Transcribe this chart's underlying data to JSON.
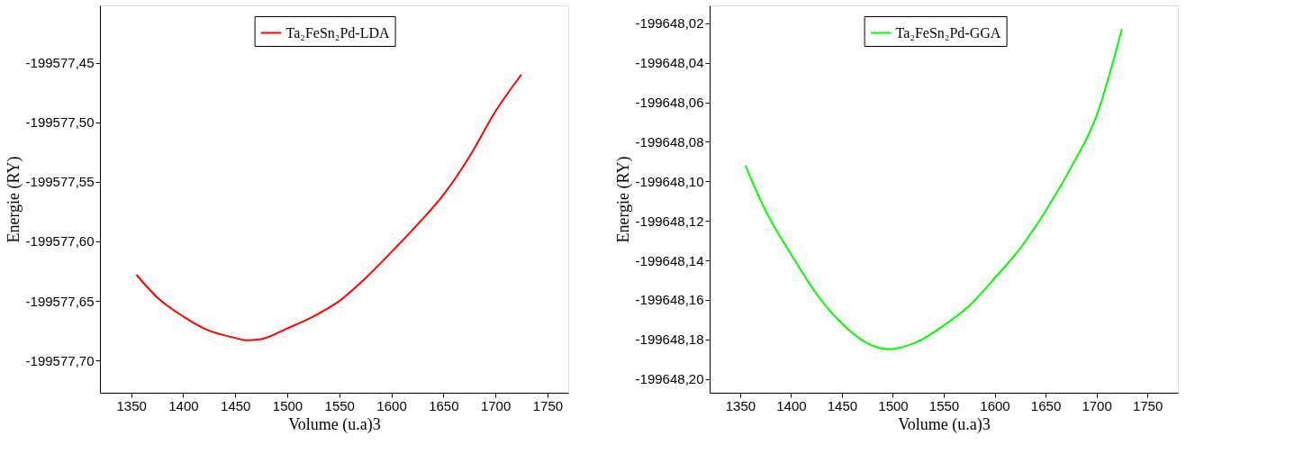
{
  "chart_data": [
    {
      "type": "line",
      "xlabel": "Volume (u.a)3",
      "ylabel": "Energie (RY)",
      "legend": "top",
      "grid": false,
      "marker": "none",
      "line_style": "solid",
      "x": [
        1355,
        1375,
        1400,
        1425,
        1450,
        1460,
        1475,
        1500,
        1525,
        1550,
        1575,
        1600,
        1625,
        1650,
        1675,
        1700,
        1725
      ],
      "series": [
        {
          "name": "Ta₂FeSn₂Pd-LDA",
          "color": "#ff0000",
          "values": [
            -199577.628,
            -199577.647,
            -199577.663,
            -199577.675,
            -199577.681,
            -199577.683,
            -199577.682,
            -199577.673,
            -199577.663,
            -199577.65,
            -199577.631,
            -199577.609,
            -199577.586,
            -199577.561,
            -199577.529,
            -199577.491,
            -199577.46
          ]
        }
      ],
      "xlim": [
        1320,
        1770
      ],
      "xticks": [
        1350,
        1400,
        1450,
        1500,
        1550,
        1600,
        1650,
        1700,
        1750
      ],
      "ylim": [
        -199577.727,
        -199577.402
      ],
      "yticks": [
        {
          "value": -199577.7,
          "label": "-199577,70"
        },
        {
          "value": -199577.65,
          "label": "-199577,65"
        },
        {
          "value": -199577.6,
          "label": "-199577,60"
        },
        {
          "value": -199577.55,
          "label": "-199577,55"
        },
        {
          "value": -199577.5,
          "label": "-199577,50"
        },
        {
          "value": -199577.45,
          "label": "-199577,45"
        }
      ]
    },
    {
      "type": "line",
      "xlabel": "Volume (u.a)3",
      "ylabel": "Energie (RY)",
      "legend": "top",
      "grid": false,
      "marker": "none",
      "line_style": "solid",
      "x": [
        1355,
        1375,
        1400,
        1425,
        1450,
        1475,
        1495,
        1525,
        1550,
        1575,
        1600,
        1625,
        1650,
        1675,
        1700,
        1725
      ],
      "series": [
        {
          "name": "Ta₂FeSn₂Pd-GGA",
          "color": "#00ff00",
          "values": [
            -199648.092,
            -199648.115,
            -199648.137,
            -199648.157,
            -199648.172,
            -199648.182,
            -199648.185,
            -199648.181,
            -199648.173,
            -199648.163,
            -199648.149,
            -199648.134,
            -199648.115,
            -199648.093,
            -199648.067,
            -199648.023
          ]
        }
      ],
      "xlim": [
        1320,
        1780
      ],
      "xticks": [
        1350,
        1400,
        1450,
        1500,
        1550,
        1600,
        1650,
        1700,
        1750
      ],
      "ylim": [
        -199648.207,
        -199648.011
      ],
      "yticks": [
        {
          "value": -199648.2,
          "label": "-199648,20"
        },
        {
          "value": -199648.18,
          "label": "-199648,18"
        },
        {
          "value": -199648.16,
          "label": "-199648,16"
        },
        {
          "value": -199648.14,
          "label": "-199648,14"
        },
        {
          "value": -199648.12,
          "label": "-199648,12"
        },
        {
          "value": -199648.1,
          "label": "-199648,10"
        },
        {
          "value": -199648.08,
          "label": "-199648,08"
        },
        {
          "value": -199648.06,
          "label": "-199648,06"
        },
        {
          "value": -199648.04,
          "label": "-199648,04"
        },
        {
          "value": -199648.02,
          "label": "-199648,02"
        }
      ]
    }
  ]
}
